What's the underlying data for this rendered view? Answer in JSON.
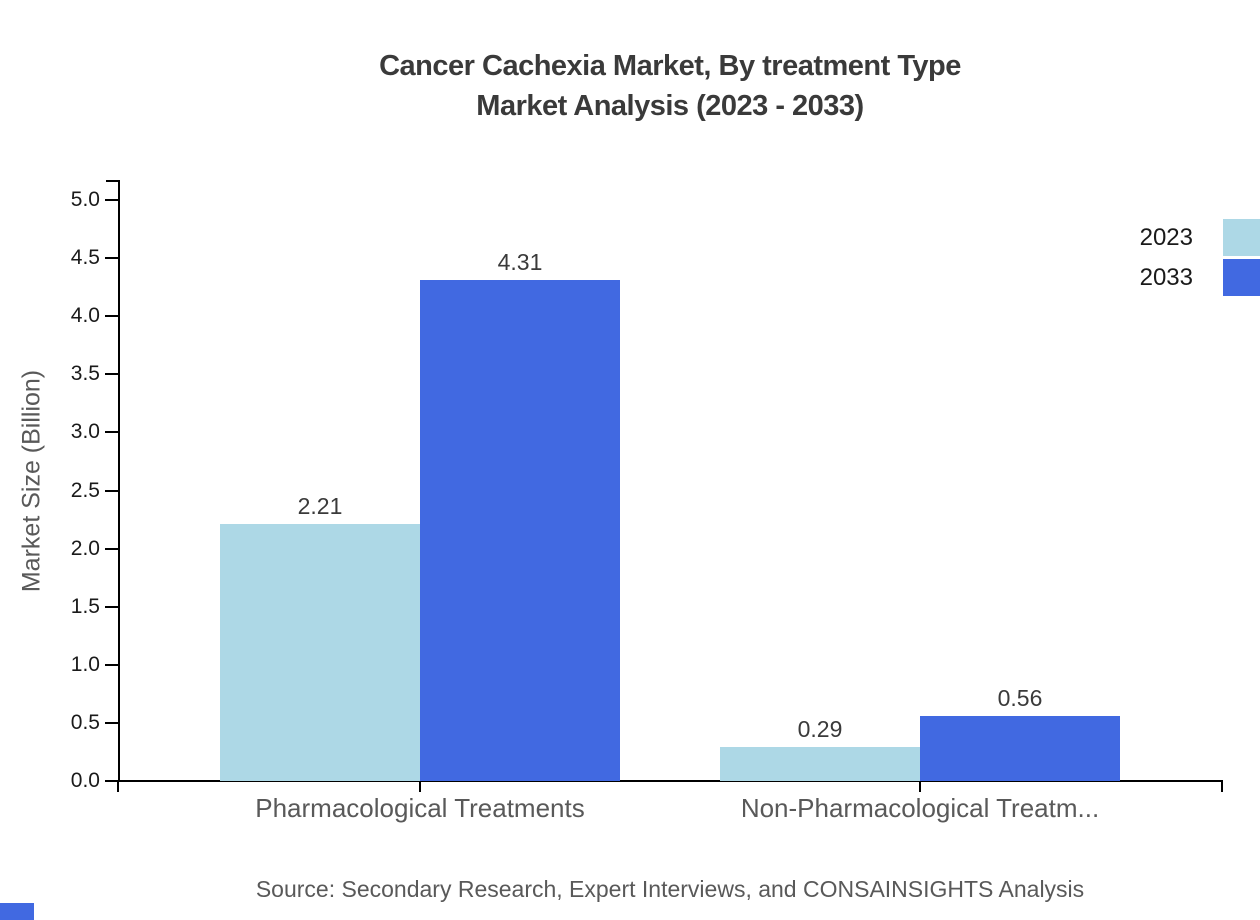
{
  "title": {
    "line1": "Cancer Cachexia Market, By treatment Type",
    "line2": "Market Analysis (2023 - 2033)"
  },
  "source_note": "Source: Secondary Research, Expert Interviews, and CONSAINSIGHTS Analysis",
  "colors": {
    "series_2023": "#ADD8E6",
    "series_2033": "#4169E1",
    "axis": "#000000",
    "title_text": "#3a3a3a",
    "muted_text": "#595959",
    "brand_mark": "#4169E1"
  },
  "chart_data": {
    "type": "bar",
    "title": "Cancer Cachexia Market, By treatment Type — Market Analysis (2023 - 2033)",
    "categories": [
      "Pharmacological Treatments",
      "Non-Pharmacological Treatm..."
    ],
    "series": [
      {
        "name": "2023",
        "color": "#ADD8E6",
        "values": [
          2.21,
          0.29
        ]
      },
      {
        "name": "2033",
        "color": "#4169E1",
        "values": [
          4.31,
          0.56
        ]
      }
    ],
    "value_labels": [
      [
        "2.21",
        "0.29"
      ],
      [
        "4.31",
        "0.56"
      ]
    ],
    "xlabel": "",
    "ylabel": "Market Size (Billion)",
    "ylim": [
      0,
      5
    ],
    "ytick_step": 0.5,
    "ytick_labels": [
      "0.0",
      "0.5",
      "1.0",
      "1.5",
      "2.0",
      "2.5",
      "3.0",
      "3.5",
      "4.0",
      "4.5",
      "5.0"
    ],
    "grid": false,
    "legend_position": "upper-right-outside"
  }
}
